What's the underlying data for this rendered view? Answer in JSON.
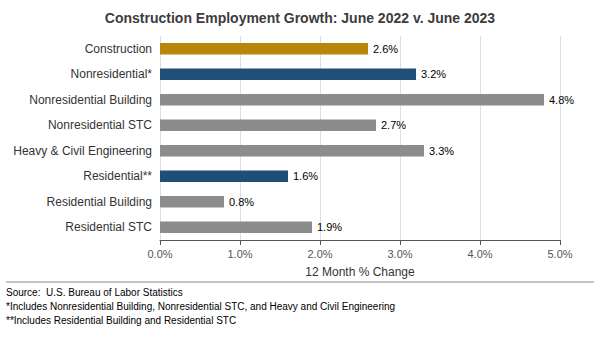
{
  "chart_data": {
    "type": "bar",
    "orientation": "horizontal",
    "title": "Construction Employment Growth: June 2022 v. June 2023",
    "categories": [
      "Residential STC",
      "Residential Building",
      "Residential**",
      "Heavy & Civil Engineering",
      "Nonresidential STC",
      "Nonresidential Building",
      "Nonresidential*",
      "Construction"
    ],
    "values": [
      1.9,
      0.8,
      1.6,
      3.3,
      2.7,
      4.8,
      3.2,
      2.6
    ],
    "value_labels": [
      "1.9%",
      "0.8%",
      "1.6%",
      "3.3%",
      "2.7%",
      "4.8%",
      "3.2%",
      "2.6%"
    ],
    "data_labels": true,
    "colors": [
      "#8c8c8c",
      "#8c8c8c",
      "#1f4e79",
      "#8c8c8c",
      "#8c8c8c",
      "#8c8c8c",
      "#1f4e79",
      "#b8860b"
    ],
    "xlabel": "12 Month % Change",
    "xlim": [
      0,
      5.0
    ],
    "xticks": [
      {
        "value": 0.0,
        "label": "0.0%"
      },
      {
        "value": 1.0,
        "label": "1.0%"
      },
      {
        "value": 2.0,
        "label": "2.0%"
      },
      {
        "value": 3.0,
        "label": "3.0%"
      },
      {
        "value": 4.0,
        "label": "4.0%"
      },
      {
        "value": 5.0,
        "label": "5.0%"
      }
    ],
    "grid": true,
    "annotations": [
      "Source:  U.S. Bureau of Labor Statistics",
      "*Includes Nonresidential Building, Nonresidential STC, and Heavy and Civil Engineering",
      "**Includes Residential Building and Residential STC"
    ]
  }
}
